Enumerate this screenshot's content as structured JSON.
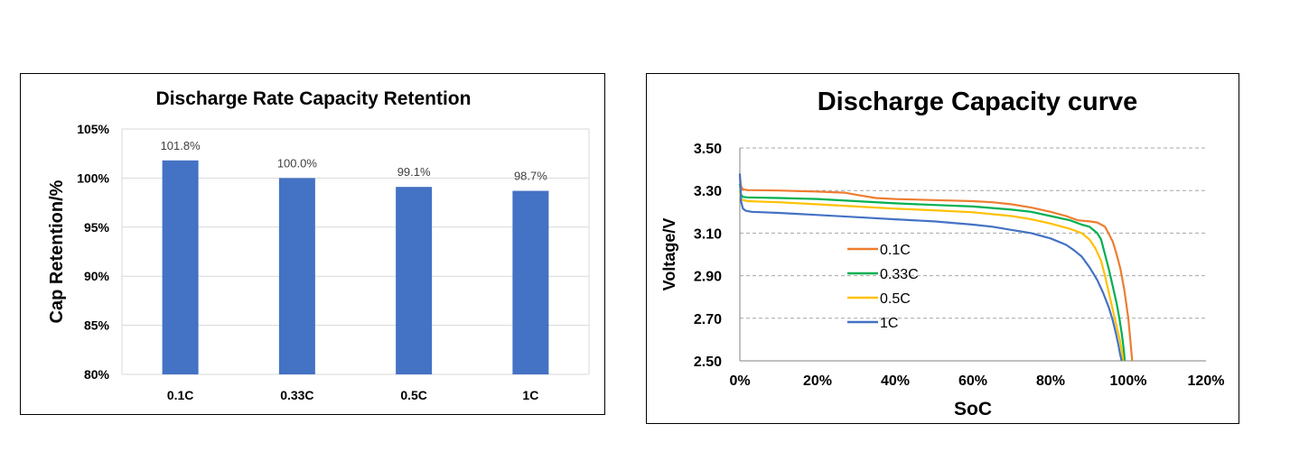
{
  "chart_data": [
    {
      "type": "bar",
      "title": "Discharge Rate Capacity Retention",
      "xlabel": "",
      "ylabel": "Cap Retention/%",
      "categories": [
        "0.1C",
        "0.33C",
        "0.5C",
        "1C"
      ],
      "values": [
        101.8,
        100.0,
        99.1,
        98.7
      ],
      "value_labels": [
        "101.8%",
        "100.0%",
        "99.1%",
        "98.7%"
      ],
      "ylim": [
        80,
        105
      ],
      "yticks": [
        80,
        85,
        90,
        95,
        100,
        105
      ],
      "ytick_labels": [
        "80%",
        "85%",
        "90%",
        "95%",
        "100%",
        "105%"
      ],
      "bar_color": "#4472C4",
      "grid": true,
      "legend": "none"
    },
    {
      "type": "line",
      "title": "Discharge Capacity curve",
      "xlabel": "SoC",
      "ylabel": "Voltage/V",
      "xlim": [
        0,
        120
      ],
      "ylim": [
        2.5,
        3.5
      ],
      "xticks": [
        0,
        20,
        40,
        60,
        80,
        100,
        120
      ],
      "xtick_labels": [
        "0%",
        "20%",
        "40%",
        "60%",
        "80%",
        "100%",
        "120%"
      ],
      "yticks": [
        2.5,
        2.7,
        2.9,
        3.1,
        3.3,
        3.5
      ],
      "ytick_labels": [
        "2.50",
        "2.70",
        "2.90",
        "3.10",
        "3.30",
        "3.50"
      ],
      "grid": "horizontal-dashed",
      "legend": "center-left",
      "series": [
        {
          "name": "0.1C",
          "color": "#ED7D31",
          "x": [
            0,
            0.3,
            0.8,
            2,
            10,
            20,
            27,
            30,
            35,
            40,
            50,
            60,
            65,
            70,
            75,
            80,
            84,
            87,
            90,
            92,
            94,
            96,
            97,
            98,
            99,
            100,
            100.5,
            101
          ],
          "y": [
            3.37,
            3.32,
            3.305,
            3.302,
            3.3,
            3.295,
            3.29,
            3.28,
            3.265,
            3.26,
            3.255,
            3.25,
            3.245,
            3.235,
            3.22,
            3.2,
            3.18,
            3.16,
            3.155,
            3.15,
            3.13,
            3.06,
            3.0,
            2.93,
            2.83,
            2.7,
            2.6,
            2.5
          ]
        },
        {
          "name": "0.33C",
          "color": "#00B050",
          "x": [
            0,
            0.3,
            0.8,
            2,
            10,
            20,
            30,
            40,
            50,
            60,
            70,
            75,
            80,
            85,
            88,
            90,
            92,
            93,
            94,
            95,
            96,
            97,
            97.7,
            98.3,
            98.8,
            99.1
          ],
          "y": [
            3.33,
            3.28,
            3.27,
            3.268,
            3.265,
            3.26,
            3.25,
            3.24,
            3.232,
            3.225,
            3.21,
            3.2,
            3.18,
            3.16,
            3.14,
            3.13,
            3.1,
            3.07,
            3.0,
            2.93,
            2.85,
            2.77,
            2.7,
            2.63,
            2.56,
            2.5
          ]
        },
        {
          "name": "0.5C",
          "color": "#FFC000",
          "x": [
            0,
            0.3,
            0.8,
            2,
            10,
            20,
            30,
            40,
            50,
            60,
            70,
            75,
            80,
            85,
            88,
            90,
            91.5,
            93,
            94,
            95,
            96,
            97,
            97.8,
            98.4,
            98.7
          ],
          "y": [
            3.3,
            3.26,
            3.255,
            3.25,
            3.245,
            3.235,
            3.225,
            3.215,
            3.207,
            3.198,
            3.18,
            3.165,
            3.145,
            3.12,
            3.1,
            3.07,
            3.03,
            2.97,
            2.9,
            2.82,
            2.74,
            2.66,
            2.6,
            2.54,
            2.5
          ]
        },
        {
          "name": "1C",
          "color": "#4472C4",
          "x": [
            0,
            0.3,
            0.8,
            1.5,
            3,
            10,
            20,
            30,
            40,
            50,
            60,
            65,
            70,
            75,
            80,
            84,
            86,
            88,
            90,
            92,
            93.5,
            95,
            96,
            96.8,
            97.4,
            97.9,
            98.3
          ],
          "y": [
            3.38,
            3.25,
            3.215,
            3.205,
            3.2,
            3.195,
            3.185,
            3.175,
            3.165,
            3.155,
            3.14,
            3.13,
            3.115,
            3.1,
            3.075,
            3.045,
            3.02,
            2.99,
            2.94,
            2.88,
            2.82,
            2.75,
            2.69,
            2.63,
            2.58,
            2.53,
            2.5
          ]
        }
      ]
    }
  ]
}
